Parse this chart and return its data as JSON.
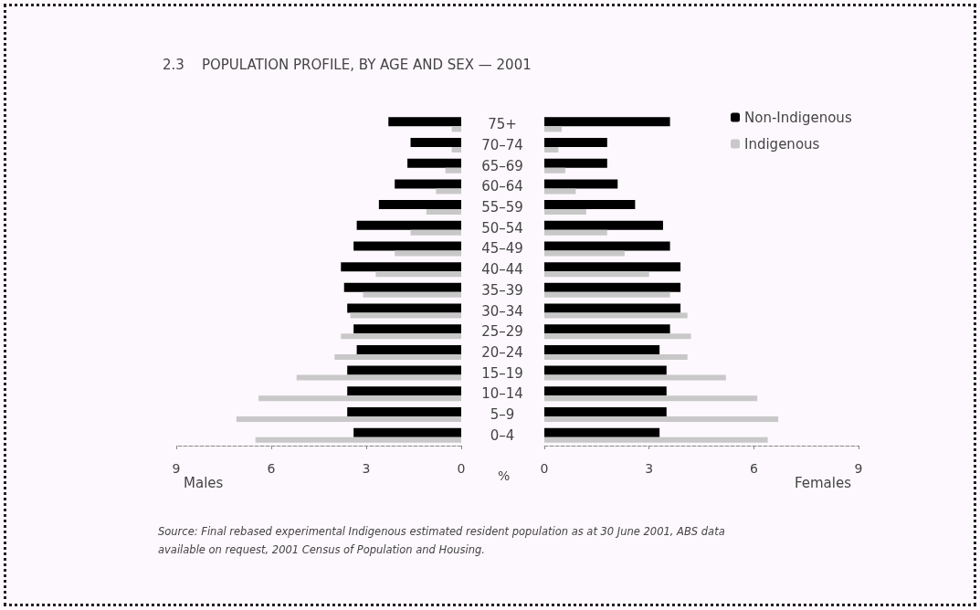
{
  "chart_data": [
    {
      "type": "bar",
      "orientation": "horizontal",
      "title": "2.3    POPULATION PROFILE, BY AGE AND SEX — 2001",
      "xlabel": "Males",
      "categories": [
        "75+",
        "70–74",
        "65–69",
        "60–64",
        "55–59",
        "50–54",
        "45–49",
        "40–44",
        "35–39",
        "30–34",
        "25–29",
        "20–24",
        "15–19",
        "10–14",
        "5–9",
        "0–4"
      ],
      "series": [
        {
          "color": "#000000",
          "values": [
            2.3,
            1.6,
            1.7,
            2.1,
            2.6,
            3.3,
            3.4,
            3.8,
            3.7,
            3.6,
            3.4,
            3.3,
            3.6,
            3.6,
            3.6,
            3.4
          ]
        },
        {
          "color": "#c8c8c8",
          "values": [
            0.3,
            0.3,
            0.5,
            0.8,
            1.1,
            1.6,
            2.1,
            2.7,
            3.1,
            3.5,
            3.8,
            4.0,
            5.2,
            6.4,
            7.1,
            6.5
          ]
        }
      ],
      "xlim": [
        9,
        0
      ],
      "xticks": [
        9,
        6,
        3,
        0
      ],
      "grid": false,
      "legend": false,
      "annotations": [
        "%",
        "Source: Final rebased experimental Indigenous estimated resident population as at 30 June 2001, ABS data available on request, 2001 Census of Population and Housing."
      ]
    },
    {
      "type": "bar",
      "orientation": "horizontal",
      "xlabel": "Females",
      "series": [
        {
          "name": "Non-Indigenous",
          "color": "#000000",
          "values": [
            3.6,
            1.8,
            1.8,
            2.1,
            2.6,
            3.4,
            3.6,
            3.9,
            3.9,
            3.9,
            3.6,
            3.3,
            3.5,
            3.5,
            3.5,
            3.3
          ]
        },
        {
          "name": "Indigenous",
          "color": "#c8c8c8",
          "values": [
            0.5,
            0.4,
            0.6,
            0.9,
            1.2,
            1.8,
            2.3,
            3.0,
            3.6,
            4.1,
            4.2,
            4.1,
            5.2,
            6.1,
            6.7,
            6.4
          ]
        }
      ],
      "xlim": [
        0,
        9
      ],
      "xticks": [
        0,
        3,
        6,
        9
      ],
      "tick_labels": "x",
      "grid": false,
      "legend": "top right"
    }
  ]
}
